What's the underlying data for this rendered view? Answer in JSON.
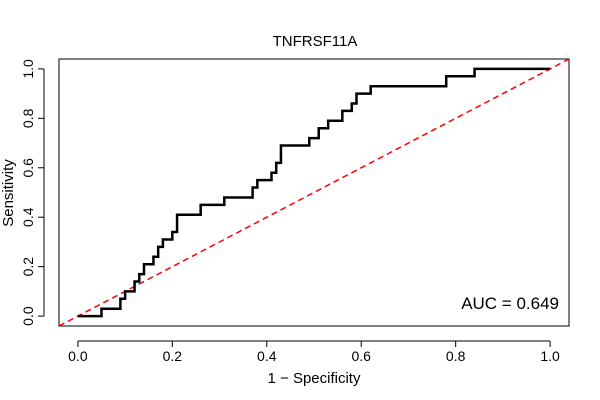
{
  "chart_data": {
    "type": "line",
    "title": "TNFRSF11A",
    "xlabel": "1 − Specificity",
    "ylabel": "Sensitivity",
    "xlim": [
      -0.04,
      1.04
    ],
    "ylim": [
      -0.04,
      1.04
    ],
    "xticks": [
      0.0,
      0.2,
      0.4,
      0.6,
      0.8,
      1.0
    ],
    "yticks": [
      0.0,
      0.2,
      0.4,
      0.6,
      0.8,
      1.0
    ],
    "xtick_labels": [
      "0.0",
      "0.2",
      "0.4",
      "0.6",
      "0.8",
      "1.0"
    ],
    "ytick_labels": [
      "0.0",
      "0.2",
      "0.4",
      "0.6",
      "0.8",
      "1.0"
    ],
    "grid": false,
    "annotation": "AUC = 0.649",
    "series": [
      {
        "name": "ROC curve",
        "color": "#000000",
        "x": [
          0.0,
          0.05,
          0.05,
          0.09,
          0.09,
          0.1,
          0.1,
          0.12,
          0.12,
          0.13,
          0.13,
          0.14,
          0.14,
          0.16,
          0.16,
          0.17,
          0.17,
          0.18,
          0.18,
          0.2,
          0.2,
          0.21,
          0.21,
          0.26,
          0.26,
          0.31,
          0.31,
          0.37,
          0.37,
          0.38,
          0.38,
          0.41,
          0.41,
          0.42,
          0.42,
          0.43,
          0.43,
          0.44,
          0.44,
          0.49,
          0.49,
          0.51,
          0.51,
          0.53,
          0.53,
          0.56,
          0.56,
          0.58,
          0.58,
          0.59,
          0.59,
          0.62,
          0.62,
          0.78,
          0.78,
          0.84,
          0.84,
          1.0
        ],
        "y": [
          0.0,
          0.0,
          0.03,
          0.03,
          0.07,
          0.07,
          0.1,
          0.1,
          0.14,
          0.14,
          0.17,
          0.17,
          0.21,
          0.21,
          0.24,
          0.24,
          0.28,
          0.28,
          0.31,
          0.31,
          0.34,
          0.34,
          0.41,
          0.41,
          0.45,
          0.45,
          0.48,
          0.48,
          0.52,
          0.52,
          0.55,
          0.55,
          0.58,
          0.58,
          0.62,
          0.62,
          0.69,
          0.69,
          0.69,
          0.69,
          0.72,
          0.72,
          0.76,
          0.76,
          0.79,
          0.79,
          0.83,
          0.83,
          0.86,
          0.86,
          0.9,
          0.9,
          0.93,
          0.93,
          0.97,
          0.97,
          1.0,
          1.0
        ]
      },
      {
        "name": "reference diagonal",
        "color": "#ff0000",
        "style": "dashed",
        "x": [
          -0.04,
          1.04
        ],
        "y": [
          -0.04,
          1.04
        ]
      }
    ]
  }
}
